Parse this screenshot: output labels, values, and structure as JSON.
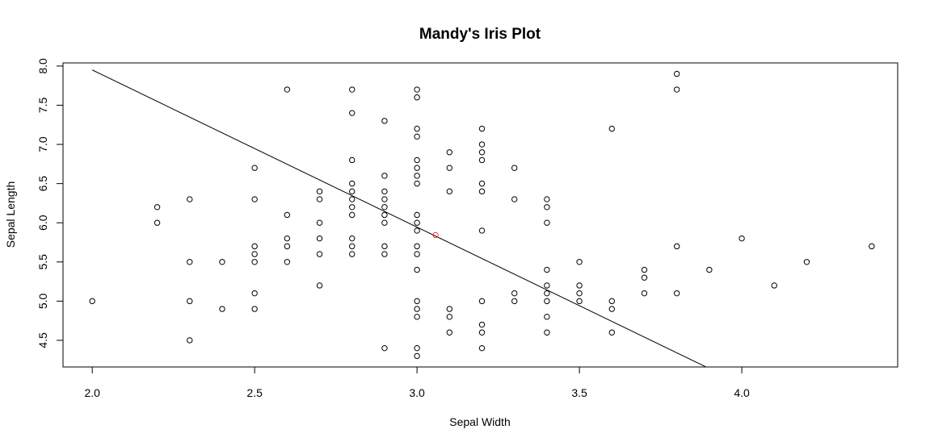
{
  "chart_data": {
    "type": "scatter",
    "title": "Mandy's Iris Plot",
    "xlabel": "Sepal Width",
    "ylabel": "Sepal Length",
    "xlim": [
      1.91,
      4.48
    ],
    "ylim": [
      4.16,
      8.04
    ],
    "x_ticks": [
      "2.0",
      "2.5",
      "3.0",
      "3.5",
      "4.0"
    ],
    "y_ticks": [
      "4.5",
      "5.0",
      "5.5",
      "6.0",
      "6.5",
      "7.0",
      "7.5",
      "8.0"
    ],
    "grid": false,
    "legend": "none",
    "series": [
      {
        "marker": "open-circle",
        "color": "#000000",
        "points": [
          [
            2.0,
            5.0
          ],
          [
            2.2,
            6.0
          ],
          [
            2.2,
            6.2
          ],
          [
            2.3,
            4.5
          ],
          [
            2.3,
            5.0
          ],
          [
            2.3,
            5.5
          ],
          [
            2.3,
            6.3
          ],
          [
            2.4,
            4.9
          ],
          [
            2.4,
            5.5
          ],
          [
            2.5,
            4.9
          ],
          [
            2.5,
            5.1
          ],
          [
            2.5,
            5.5
          ],
          [
            2.5,
            5.6
          ],
          [
            2.5,
            5.7
          ],
          [
            2.5,
            6.3
          ],
          [
            2.5,
            6.7
          ],
          [
            2.6,
            5.5
          ],
          [
            2.6,
            5.7
          ],
          [
            2.6,
            5.8
          ],
          [
            2.6,
            6.1
          ],
          [
            2.6,
            7.7
          ],
          [
            2.7,
            5.2
          ],
          [
            2.7,
            5.6
          ],
          [
            2.7,
            5.8
          ],
          [
            2.7,
            6.0
          ],
          [
            2.7,
            6.3
          ],
          [
            2.7,
            6.4
          ],
          [
            2.8,
            5.6
          ],
          [
            2.8,
            5.7
          ],
          [
            2.8,
            5.8
          ],
          [
            2.8,
            6.1
          ],
          [
            2.8,
            6.2
          ],
          [
            2.8,
            6.3
          ],
          [
            2.8,
            6.4
          ],
          [
            2.8,
            6.5
          ],
          [
            2.8,
            6.8
          ],
          [
            2.8,
            7.4
          ],
          [
            2.8,
            7.7
          ],
          [
            2.9,
            4.4
          ],
          [
            2.9,
            5.6
          ],
          [
            2.9,
            5.7
          ],
          [
            2.9,
            6.0
          ],
          [
            2.9,
            6.1
          ],
          [
            2.9,
            6.2
          ],
          [
            2.9,
            6.3
          ],
          [
            2.9,
            6.4
          ],
          [
            2.9,
            6.6
          ],
          [
            2.9,
            7.3
          ],
          [
            3.0,
            4.3
          ],
          [
            3.0,
            4.4
          ],
          [
            3.0,
            4.8
          ],
          [
            3.0,
            4.9
          ],
          [
            3.0,
            5.0
          ],
          [
            3.0,
            5.4
          ],
          [
            3.0,
            5.6
          ],
          [
            3.0,
            5.7
          ],
          [
            3.0,
            5.9
          ],
          [
            3.0,
            6.0
          ],
          [
            3.0,
            6.1
          ],
          [
            3.0,
            6.5
          ],
          [
            3.0,
            6.6
          ],
          [
            3.0,
            6.7
          ],
          [
            3.0,
            6.8
          ],
          [
            3.0,
            7.1
          ],
          [
            3.0,
            7.2
          ],
          [
            3.0,
            7.6
          ],
          [
            3.0,
            7.7
          ],
          [
            3.1,
            4.6
          ],
          [
            3.1,
            4.8
          ],
          [
            3.1,
            4.9
          ],
          [
            3.1,
            6.4
          ],
          [
            3.1,
            6.7
          ],
          [
            3.1,
            6.9
          ],
          [
            3.2,
            4.4
          ],
          [
            3.2,
            4.6
          ],
          [
            3.2,
            4.7
          ],
          [
            3.2,
            5.0
          ],
          [
            3.2,
            5.9
          ],
          [
            3.2,
            6.4
          ],
          [
            3.2,
            6.5
          ],
          [
            3.2,
            6.8
          ],
          [
            3.2,
            6.9
          ],
          [
            3.2,
            7.0
          ],
          [
            3.2,
            7.2
          ],
          [
            3.3,
            5.0
          ],
          [
            3.3,
            5.1
          ],
          [
            3.3,
            6.3
          ],
          [
            3.3,
            6.7
          ],
          [
            3.4,
            4.6
          ],
          [
            3.4,
            4.8
          ],
          [
            3.4,
            5.0
          ],
          [
            3.4,
            5.1
          ],
          [
            3.4,
            5.2
          ],
          [
            3.4,
            5.4
          ],
          [
            3.4,
            6.0
          ],
          [
            3.4,
            6.2
          ],
          [
            3.4,
            6.3
          ],
          [
            3.5,
            5.0
          ],
          [
            3.5,
            5.1
          ],
          [
            3.5,
            5.2
          ],
          [
            3.5,
            5.5
          ],
          [
            3.6,
            4.6
          ],
          [
            3.6,
            4.9
          ],
          [
            3.6,
            5.0
          ],
          [
            3.6,
            7.2
          ],
          [
            3.7,
            5.1
          ],
          [
            3.7,
            5.3
          ],
          [
            3.7,
            5.4
          ],
          [
            3.8,
            5.1
          ],
          [
            3.8,
            5.7
          ],
          [
            3.8,
            7.7
          ],
          [
            3.8,
            7.9
          ],
          [
            3.9,
            5.4
          ],
          [
            4.0,
            5.8
          ],
          [
            4.1,
            5.2
          ],
          [
            4.2,
            5.5
          ],
          [
            4.4,
            5.7
          ]
        ]
      },
      {
        "marker": "open-circle",
        "color": "#e0403a",
        "points": [
          [
            3.057,
            5.843
          ]
        ]
      }
    ],
    "lines": [
      {
        "type": "line",
        "color": "#000000",
        "points": [
          [
            2.0,
            7.95
          ],
          [
            3.9,
            4.14
          ]
        ]
      }
    ]
  }
}
